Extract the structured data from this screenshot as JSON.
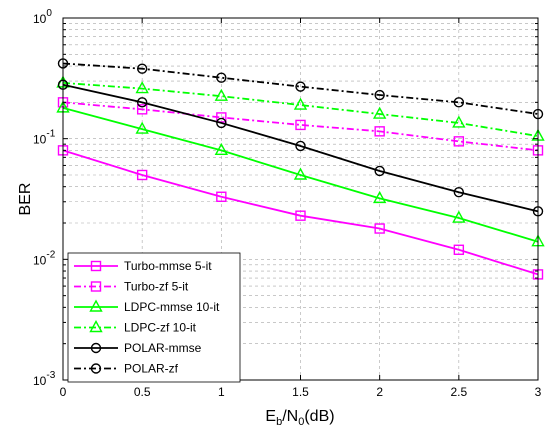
{
  "chart_data": {
    "type": "line",
    "ylabel": "BER",
    "xlabel": {
      "E": "E",
      "b": "b",
      "slash": "/N",
      "zero": "0",
      "unit": "(dB)"
    },
    "xlim": [
      0,
      3
    ],
    "ylim": [
      0.001,
      1
    ],
    "yscale": "log",
    "grid": true,
    "legend_position": "bottom-left",
    "x_ticks": [
      "0",
      "0.5",
      "1",
      "1.5",
      "2",
      "2.5",
      "3"
    ],
    "y_ticks": [
      {
        "value": 0.001,
        "base": "10",
        "exp": "-3"
      },
      {
        "value": 0.01,
        "base": "10",
        "exp": "-2"
      },
      {
        "value": 0.1,
        "base": "10",
        "exp": "-1"
      },
      {
        "value": 1,
        "base": "10",
        "exp": "0"
      }
    ],
    "x": [
      0,
      0.5,
      1,
      1.5,
      2,
      2.5,
      3
    ],
    "series": [
      {
        "name": "Turbo-mmse 5-it",
        "color": "#ff00ff",
        "dash": "solid",
        "marker": "square",
        "values": [
          0.08,
          0.05,
          0.033,
          0.023,
          0.018,
          0.012,
          0.0075
        ]
      },
      {
        "name": "Turbo-zf 5-it",
        "color": "#ff00ff",
        "dash": "dashdot",
        "marker": "square",
        "values": [
          0.2,
          0.175,
          0.15,
          0.13,
          0.115,
          0.095,
          0.08
        ]
      },
      {
        "name": "LDPC-mmse 10-it",
        "color": "#00ff00",
        "dash": "solid",
        "marker": "triangle",
        "values": [
          0.18,
          0.12,
          0.08,
          0.05,
          0.032,
          0.022,
          0.014
        ]
      },
      {
        "name": "LDPC-zf 10-it",
        "color": "#00ff00",
        "dash": "dashdot",
        "marker": "triangle",
        "values": [
          0.29,
          0.26,
          0.225,
          0.19,
          0.16,
          0.135,
          0.105
        ]
      },
      {
        "name": "POLAR-mmse",
        "color": "#000000",
        "dash": "solid",
        "marker": "circle",
        "values": [
          0.28,
          0.2,
          0.135,
          0.087,
          0.054,
          0.036,
          0.025
        ]
      },
      {
        "name": "POLAR-zf",
        "color": "#000000",
        "dash": "dashdot",
        "marker": "circle",
        "values": [
          0.42,
          0.38,
          0.32,
          0.27,
          0.23,
          0.2,
          0.16
        ]
      }
    ]
  }
}
